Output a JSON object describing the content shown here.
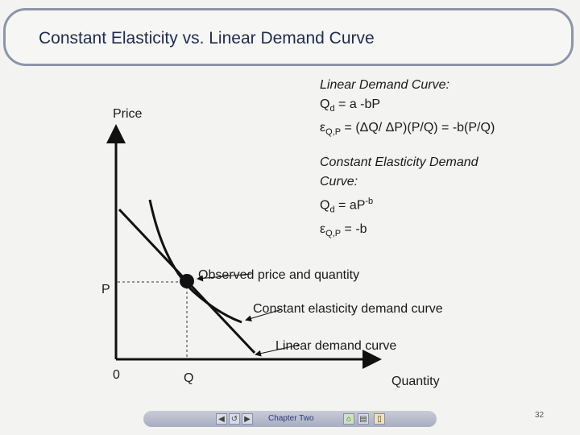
{
  "title": "Constant Elasticity vs. Linear Demand Curve",
  "axes": {
    "y_label": "Price",
    "x_label": "Quantity",
    "origin": "0",
    "p_tick": "P",
    "q_tick": "Q"
  },
  "linear_block": {
    "heading": "Linear Demand Curve:",
    "eq1_main": "Q",
    "eq1_sub": "d",
    "eq1_rest": " = a -bP",
    "eq2_main": "ε",
    "eq2_sub": "Q,P",
    "eq2_rest": " = (ΔQ/ ΔP)(P/Q) = -b(P/Q)"
  },
  "constant_block": {
    "heading_1": "Constant Elasticity Demand",
    "heading_2": "Curve:",
    "eq1_main": "Q",
    "eq1_sub": "d",
    "eq1_mid": " = aP",
    "eq1_sup": "-b",
    "eq2_main": "ε",
    "eq2_sub": "Q,P",
    "eq2_rest": " = -b"
  },
  "annotations": {
    "observed": "Observed price and quantity",
    "constant_curve": "Constant elasticity demand curve",
    "linear_curve": "Linear demand curve"
  },
  "footer": {
    "chapter": "Chapter Two",
    "page": "32"
  }
}
